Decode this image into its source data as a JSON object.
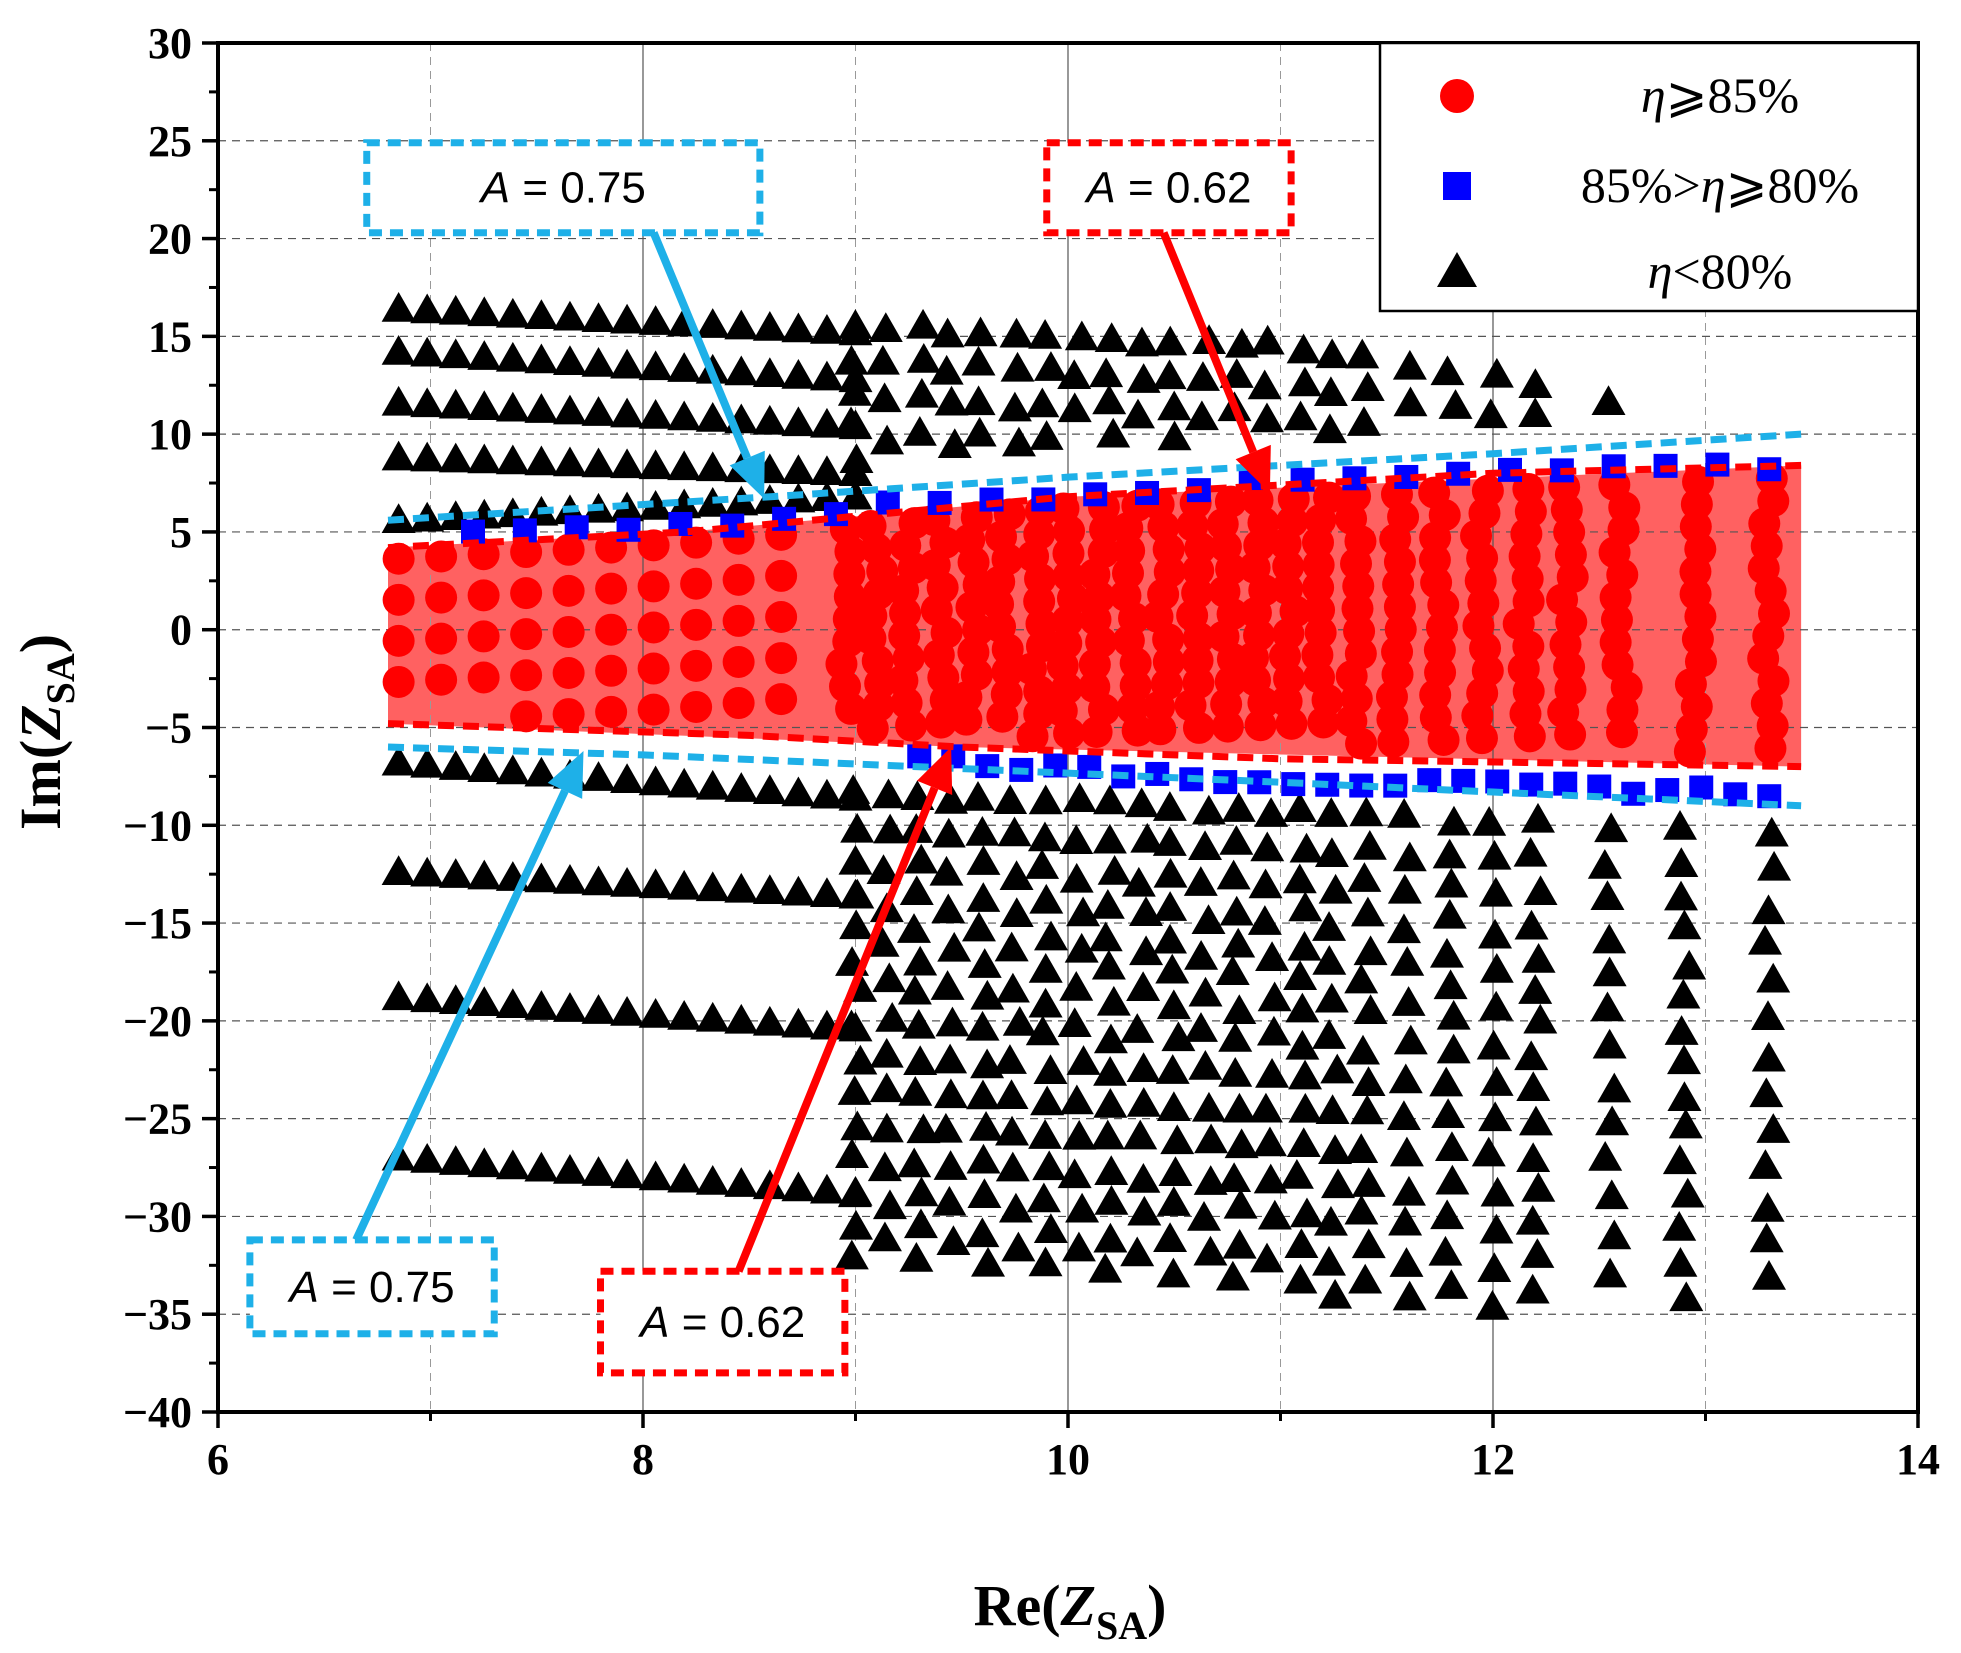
{
  "chart_data": {
    "type": "scatter",
    "title": "",
    "xlabel": {
      "prefix": "Re(",
      "var": "Z",
      "sub": "SA",
      "suffix": ")"
    },
    "ylabel": {
      "prefix": "Im(",
      "var": "Z",
      "sub": "SA",
      "suffix": ")"
    },
    "xlim": [
      6,
      14
    ],
    "ylim": [
      -40,
      30
    ],
    "xticks": [
      6,
      8,
      10,
      12,
      14
    ],
    "yticks": [
      -40,
      -35,
      -30,
      -25,
      -20,
      -15,
      -10,
      -5,
      0,
      5,
      10,
      15,
      20,
      25,
      30
    ],
    "grid": true,
    "legend_position": "top-right",
    "series": [
      {
        "name": "η≥85%",
        "legend_label": "η⩾85%",
        "marker": "circle",
        "color": "#ff0000",
        "region": {
          "x": [
            6.8,
            13.45
          ],
          "upper": [
            [
              6.8,
              4.2
            ],
            [
              8.2,
              5.0
            ],
            [
              10.0,
              6.8
            ],
            [
              13.45,
              8.4
            ]
          ],
          "lower": [
            [
              6.8,
              -4.8
            ],
            [
              9.5,
              -6.0
            ],
            [
              13.45,
              -7.0
            ]
          ]
        },
        "columns": [
          6.85,
          7.05,
          7.25,
          7.45,
          7.65,
          7.85,
          8.05,
          8.25,
          8.45,
          8.65,
          8.95,
          9.1,
          9.25,
          9.4,
          9.55,
          9.7,
          9.85,
          10.0,
          10.15,
          10.3,
          10.45,
          10.6,
          10.75,
          10.9,
          11.05,
          11.2,
          11.35,
          11.55,
          11.75,
          11.95,
          12.15,
          12.35,
          12.6,
          12.95,
          13.3
        ]
      },
      {
        "name": "85%>η≥80%",
        "legend_label": "85%>η⩾80%",
        "marker": "square",
        "color": "#0000ff",
        "upper_band": [
          [
            7.2,
            5.2
          ],
          [
            8.2,
            5.2
          ],
          [
            9.0,
            6.2
          ],
          [
            10.0,
            7.0
          ],
          [
            11.0,
            7.6
          ],
          [
            12.0,
            8.2
          ],
          [
            13.3,
            8.4
          ]
        ],
        "lower_band": [
          [
            9.3,
            -6.4
          ],
          [
            10.0,
            -7.2
          ],
          [
            11.0,
            -7.7
          ],
          [
            12.0,
            -8.0
          ],
          [
            13.3,
            -8.3
          ]
        ]
      },
      {
        "name": "η<80%",
        "legend_label": "η<80%",
        "marker": "triangle",
        "color": "#000000",
        "left_rows": [
          {
            "x_start": 6.85,
            "x_end": 9.0,
            "y_start": 16.4,
            "y_end": 15.2
          },
          {
            "x_start": 6.85,
            "x_end": 9.0,
            "y_start": 14.2,
            "y_end": 12.8
          },
          {
            "x_start": 6.85,
            "x_end": 9.0,
            "y_start": 11.6,
            "y_end": 10.4
          },
          {
            "x_start": 6.85,
            "x_end": 9.0,
            "y_start": 8.8,
            "y_end": 8.0
          },
          {
            "x_start": 6.85,
            "x_end": 9.0,
            "y_start": 5.6,
            "y_end": 6.8
          },
          {
            "x_start": 6.85,
            "x_end": 9.0,
            "y_start": -6.8,
            "y_end": -8.6
          },
          {
            "x_start": 6.85,
            "x_end": 9.0,
            "y_start": -12.4,
            "y_end": -13.6
          },
          {
            "x_start": 6.85,
            "x_end": 9.0,
            "y_start": -18.8,
            "y_end": -20.4
          },
          {
            "x_start": 6.85,
            "x_end": 9.0,
            "y_start": -27.0,
            "y_end": -28.8
          }
        ],
        "right_columns": [
          9.0,
          9.15,
          9.3,
          9.45,
          9.6,
          9.75,
          9.9,
          10.05,
          10.2,
          10.35,
          10.5,
          10.65,
          10.8,
          10.95,
          11.1,
          11.25,
          11.4,
          11.6,
          11.8,
          12.0,
          12.2,
          12.55,
          12.9,
          13.3
        ],
        "right_top_envelope": [
          [
            9.0,
            15.5
          ],
          [
            10.0,
            15.0
          ],
          [
            11.0,
            14.5
          ],
          [
            12.0,
            13.0
          ],
          [
            13.3,
            10.0
          ]
        ],
        "right_bottom_envelope": [
          [
            9.0,
            -32.5
          ],
          [
            10.0,
            -33.5
          ],
          [
            11.0,
            -34.0
          ],
          [
            12.0,
            -34.5
          ],
          [
            13.3,
            -35.0
          ]
        ]
      }
    ],
    "boundaries": [
      {
        "label": "A = 0.75",
        "color": "#1eb0e8",
        "style": "dashed",
        "upper": [
          [
            6.8,
            5.6
          ],
          [
            8.6,
            6.8
          ],
          [
            10.0,
            7.8
          ],
          [
            11.0,
            8.4
          ],
          [
            12.0,
            9.0
          ],
          [
            13.45,
            10.0
          ]
        ],
        "lower": [
          [
            6.8,
            -6.0
          ],
          [
            8.0,
            -6.4
          ],
          [
            9.5,
            -7.1
          ],
          [
            11.0,
            -7.8
          ],
          [
            12.0,
            -8.3
          ],
          [
            13.45,
            -9.0
          ]
        ]
      },
      {
        "label": "A = 0.62",
        "color": "#ff0000",
        "style": "dashed",
        "upper": [
          [
            6.8,
            4.2
          ],
          [
            8.2,
            5.0
          ],
          [
            10.0,
            6.8
          ],
          [
            11.0,
            7.4
          ],
          [
            12.0,
            8.0
          ],
          [
            13.45,
            8.4
          ]
        ],
        "lower": [
          [
            6.8,
            -4.8
          ],
          [
            8.5,
            -5.4
          ],
          [
            9.5,
            -6.0
          ],
          [
            11.0,
            -6.6
          ],
          [
            13.45,
            -7.0
          ]
        ]
      }
    ],
    "annotations": [
      {
        "label": "A = 0.75",
        "var": "A",
        "value": "= 0.75",
        "color": "#1eb0e8",
        "box_data": [
          [
            6.7,
            24.9
          ],
          [
            8.55,
            20.3
          ]
        ],
        "arrow_from": [
          8.05,
          20.3
        ],
        "arrow_to": [
          8.57,
          6.7
        ]
      },
      {
        "label": "A = 0.62",
        "var": "A",
        "value": "= 0.62",
        "color": "#ff0000",
        "box_data": [
          [
            9.9,
            24.9
          ],
          [
            11.05,
            20.3
          ]
        ],
        "arrow_from": [
          10.45,
          20.3
        ],
        "arrow_to": [
          10.95,
          7.0
        ]
      },
      {
        "label": "A = 0.75",
        "var": "A",
        "value": "= 0.75",
        "color": "#1eb0e8",
        "box_data": [
          [
            6.15,
            -31.2
          ],
          [
            7.3,
            -36.0
          ]
        ],
        "arrow_from": [
          6.65,
          -31.2
        ],
        "arrow_to": [
          7.72,
          -6.2
        ]
      },
      {
        "label": "A = 0.62",
        "var": "A",
        "value": "= 0.62",
        "color": "#ff0000",
        "box_data": [
          [
            7.8,
            -32.8
          ],
          [
            8.95,
            -38.0
          ]
        ],
        "arrow_from": [
          8.45,
          -32.8
        ],
        "arrow_to": [
          9.45,
          -6.0
        ]
      }
    ]
  }
}
